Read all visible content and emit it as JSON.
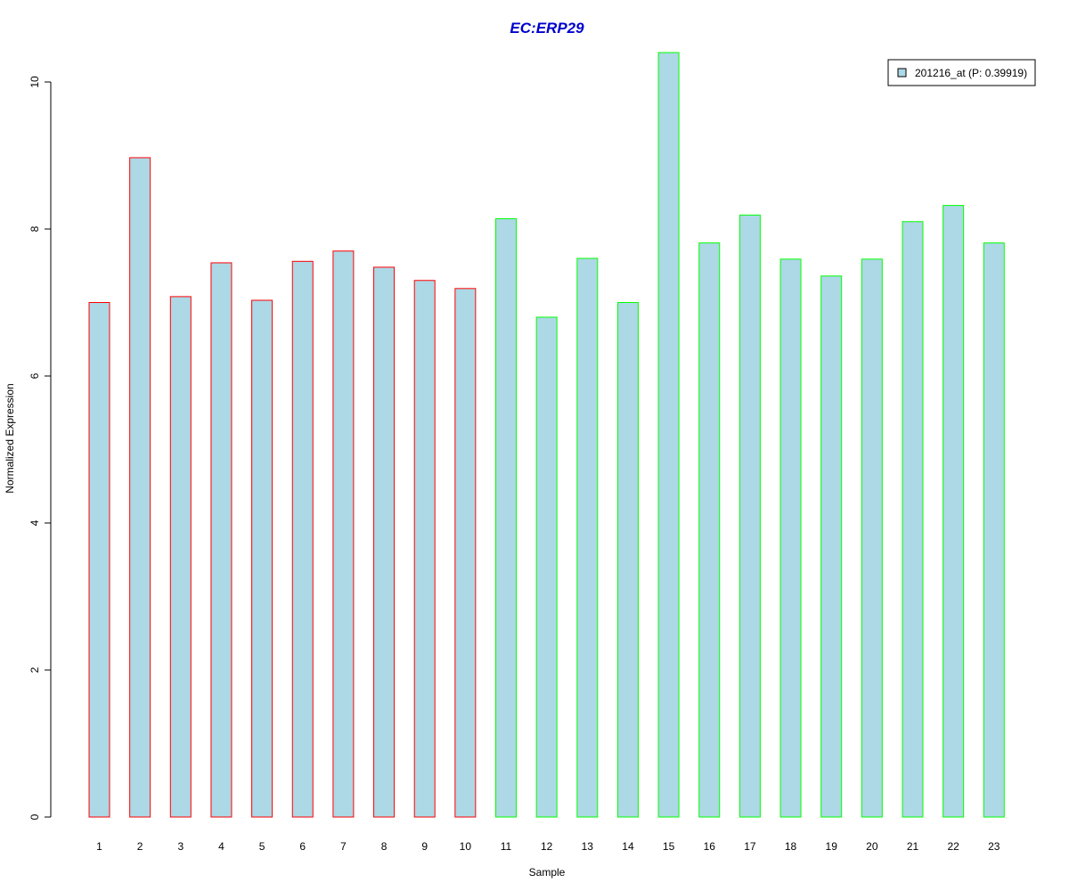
{
  "chart_data": {
    "type": "bar",
    "title": "EC:ERP29",
    "xlabel": "Sample",
    "ylabel": "Normalized Expression",
    "ylim": [
      0,
      10.4
    ],
    "yticks": [
      0,
      2,
      4,
      6,
      8,
      10
    ],
    "yticks_labels": [
      "0",
      "2",
      "4",
      "6",
      "8",
      "10"
    ],
    "categories": [
      "1",
      "2",
      "3",
      "4",
      "5",
      "6",
      "7",
      "8",
      "9",
      "10",
      "11",
      "12",
      "13",
      "14",
      "15",
      "16",
      "17",
      "18",
      "19",
      "20",
      "21",
      "22",
      "23"
    ],
    "series": [
      {
        "name": "201216_at (P: 0.39919)",
        "values": [
          7.0,
          8.97,
          7.08,
          7.54,
          7.03,
          7.56,
          7.7,
          7.48,
          7.3,
          7.19,
          8.14,
          6.8,
          7.6,
          7.0,
          10.4,
          7.81,
          8.19,
          7.59,
          7.36,
          7.59,
          8.1,
          8.32,
          7.81
        ]
      }
    ],
    "bar_fill": "#add8e6",
    "bar_border_colors": [
      "#ff0000",
      "#ff0000",
      "#ff0000",
      "#ff0000",
      "#ff0000",
      "#ff0000",
      "#ff0000",
      "#ff0000",
      "#ff0000",
      "#ff0000",
      "#00ff00",
      "#00ff00",
      "#00ff00",
      "#00ff00",
      "#00ff00",
      "#00ff00",
      "#00ff00",
      "#00ff00",
      "#00ff00",
      "#00ff00",
      "#00ff00",
      "#00ff00",
      "#00ff00"
    ],
    "title_color": "#0000cd",
    "grid": false,
    "legend_position": "top-right"
  }
}
